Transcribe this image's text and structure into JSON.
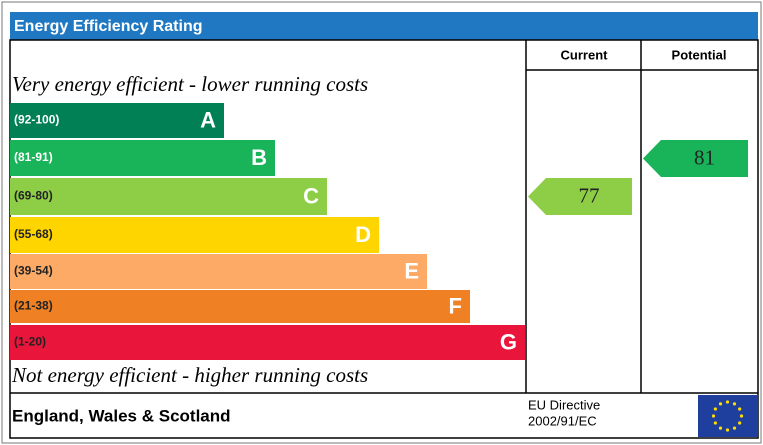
{
  "header": {
    "title": "Energy Efficiency Rating",
    "columns": [
      "Current",
      "Potential"
    ]
  },
  "top_note": "Very energy efficient - lower running costs",
  "bottom_note": "Not energy efficient - higher running costs",
  "bands": [
    {
      "range": "(92-100)",
      "letter": "A",
      "color": "#008054"
    },
    {
      "range": "(81-91)",
      "letter": "B",
      "color": "#19b459"
    },
    {
      "range": "(69-80)",
      "letter": "C",
      "color": "#8dce46"
    },
    {
      "range": "(55-68)",
      "letter": "D",
      "color": "#ffd500"
    },
    {
      "range": "(39-54)",
      "letter": "E",
      "color": "#fcaa65"
    },
    {
      "range": "(21-38)",
      "letter": "F",
      "color": "#ef8023"
    },
    {
      "range": "(1-20)",
      "letter": "G",
      "color": "#e9153b"
    }
  ],
  "current": {
    "value": 77
  },
  "potential": {
    "value": 81
  },
  "footer": {
    "region": "England, Wales & Scotland",
    "directive": [
      "EU Directive",
      "2002/91/EC"
    ]
  }
}
